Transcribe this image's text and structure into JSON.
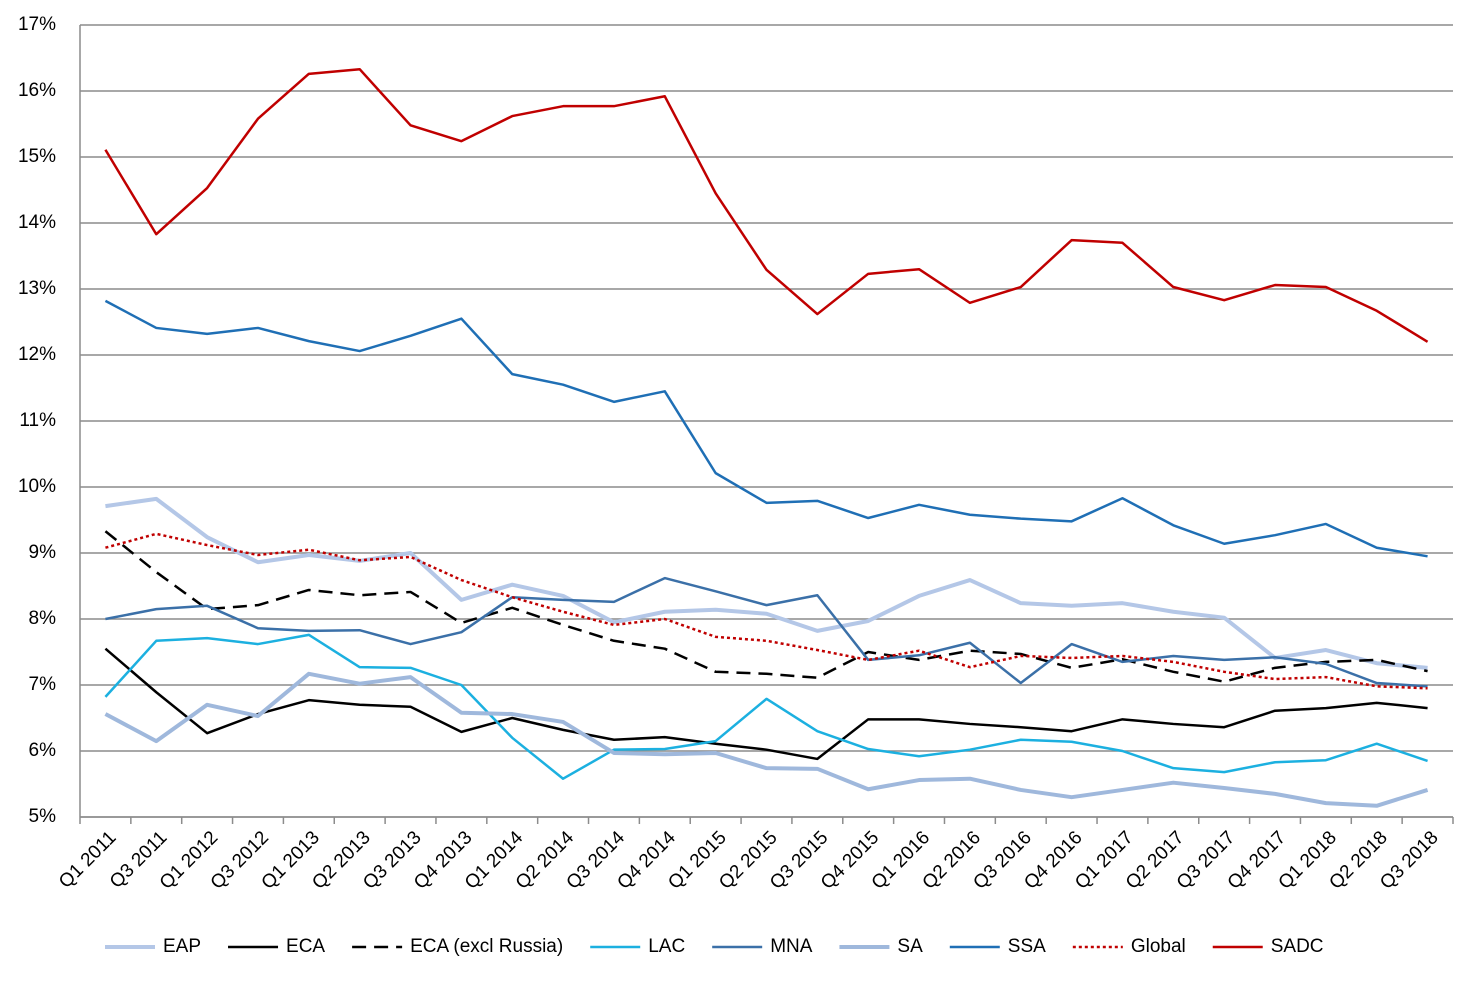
{
  "chart_data": {
    "type": "line",
    "categories": [
      "Q1 2011",
      "Q3 2011",
      "Q1 2012",
      "Q3 2012",
      "Q1 2013",
      "Q2 2013",
      "Q3 2013",
      "Q4 2013",
      "Q1 2014",
      "Q2 2014",
      "Q3 2014",
      "Q4 2014",
      "Q1 2015",
      "Q2 2015",
      "Q3 2015",
      "Q4 2015",
      "Q1 2016",
      "Q2 2016",
      "Q3 2016",
      "Q4 2016",
      "Q1 2017",
      "Q2 2017",
      "Q3 2017",
      "Q4 2017",
      "Q1 2018",
      "Q2 2018",
      "Q3 2018"
    ],
    "ylim": [
      5,
      17
    ],
    "yticks": [
      {
        "value": 5,
        "label": "5%"
      },
      {
        "value": 6,
        "label": "6%"
      },
      {
        "value": 7,
        "label": "7%"
      },
      {
        "value": 8,
        "label": "8%"
      },
      {
        "value": 9,
        "label": "9%"
      },
      {
        "value": 10,
        "label": "10%"
      },
      {
        "value": 11,
        "label": "11%"
      },
      {
        "value": 12,
        "label": "12%"
      },
      {
        "value": 13,
        "label": "13%"
      },
      {
        "value": 14,
        "label": "14%"
      },
      {
        "value": 15,
        "label": "15%"
      },
      {
        "value": 16,
        "label": "16%"
      },
      {
        "value": 17,
        "label": "17%"
      }
    ],
    "grid": true,
    "legend": "bottom",
    "series": [
      {
        "name": "EAP",
        "color": "#b4c7e7",
        "style": "solid",
        "width": 4,
        "values": [
          9.71,
          9.82,
          9.24,
          8.86,
          8.97,
          8.88,
          9.0,
          8.29,
          8.52,
          8.35,
          7.95,
          8.11,
          8.14,
          8.08,
          7.82,
          7.97,
          8.35,
          8.59,
          8.24,
          8.2,
          8.24,
          8.11,
          8.02,
          7.41,
          7.53,
          7.33,
          7.26
        ]
      },
      {
        "name": "ECA",
        "color": "#000000",
        "style": "solid",
        "width": 2.5,
        "values": [
          7.55,
          6.89,
          6.27,
          6.56,
          6.77,
          6.7,
          6.67,
          6.29,
          6.5,
          6.32,
          6.17,
          6.21,
          6.11,
          6.02,
          5.88,
          6.48,
          6.48,
          6.41,
          6.36,
          6.3,
          6.48,
          6.41,
          6.36,
          6.61,
          6.65,
          6.73,
          6.65
        ]
      },
      {
        "name": "ECA (excl Russia)",
        "color": "#000000",
        "style": "dashed",
        "width": 2.5,
        "values": [
          9.33,
          8.71,
          8.15,
          8.21,
          8.44,
          8.36,
          8.41,
          7.94,
          8.17,
          7.91,
          7.67,
          7.55,
          7.2,
          7.17,
          7.11,
          7.5,
          7.38,
          7.52,
          7.47,
          7.26,
          7.39,
          7.2,
          7.05,
          7.26,
          7.35,
          7.38,
          7.21
        ]
      },
      {
        "name": "LAC",
        "color": "#1cb0e0",
        "style": "solid",
        "width": 2.5,
        "values": [
          6.82,
          7.67,
          7.71,
          7.62,
          7.76,
          7.27,
          7.26,
          7.0,
          6.2,
          5.58,
          6.02,
          6.03,
          6.15,
          6.79,
          6.3,
          6.03,
          5.92,
          6.02,
          6.17,
          6.14,
          6.0,
          5.74,
          5.68,
          5.83,
          5.86,
          6.11,
          5.85
        ]
      },
      {
        "name": "MNA",
        "color": "#3b70a8",
        "style": "solid",
        "width": 2.5,
        "values": [
          8.0,
          8.15,
          8.2,
          7.86,
          7.82,
          7.83,
          7.62,
          7.8,
          8.33,
          8.29,
          8.26,
          8.62,
          8.42,
          8.21,
          8.36,
          7.38,
          7.45,
          7.64,
          7.03,
          7.62,
          7.35,
          7.44,
          7.38,
          7.42,
          7.32,
          7.03,
          6.98
        ]
      },
      {
        "name": "SA",
        "color": "#9fb8dc",
        "style": "solid",
        "width": 4,
        "values": [
          6.56,
          6.15,
          6.7,
          6.53,
          7.17,
          7.02,
          7.12,
          6.58,
          6.56,
          6.44,
          5.97,
          5.95,
          5.97,
          5.74,
          5.73,
          5.42,
          5.56,
          5.58,
          5.41,
          5.3,
          5.41,
          5.52,
          5.44,
          5.35,
          5.21,
          5.17,
          5.41
        ]
      },
      {
        "name": "SSA",
        "color": "#1f6fb5",
        "style": "solid",
        "width": 2.5,
        "values": [
          12.82,
          12.41,
          12.32,
          12.41,
          12.21,
          12.06,
          12.29,
          12.55,
          11.71,
          11.55,
          11.29,
          11.45,
          10.21,
          9.76,
          9.79,
          9.53,
          9.73,
          9.58,
          9.52,
          9.48,
          9.83,
          9.42,
          9.14,
          9.27,
          9.44,
          9.08,
          8.95
        ]
      },
      {
        "name": "Global",
        "color": "#c00000",
        "style": "dotted",
        "width": 2.5,
        "values": [
          9.08,
          9.29,
          9.12,
          8.97,
          9.05,
          8.89,
          8.94,
          8.59,
          8.33,
          8.11,
          7.91,
          8.0,
          7.73,
          7.67,
          7.53,
          7.38,
          7.52,
          7.27,
          7.44,
          7.41,
          7.44,
          7.35,
          7.2,
          7.09,
          7.12,
          6.98,
          6.95
        ]
      },
      {
        "name": "SADC",
        "color": "#c00000",
        "style": "solid",
        "width": 2.5,
        "values": [
          15.11,
          13.83,
          14.53,
          15.58,
          16.26,
          16.33,
          15.48,
          15.24,
          15.62,
          15.77,
          15.77,
          15.92,
          14.45,
          13.29,
          12.62,
          13.23,
          13.3,
          12.79,
          13.03,
          13.74,
          13.7,
          13.03,
          12.83,
          13.06,
          13.03,
          12.67,
          12.2
        ]
      }
    ]
  }
}
